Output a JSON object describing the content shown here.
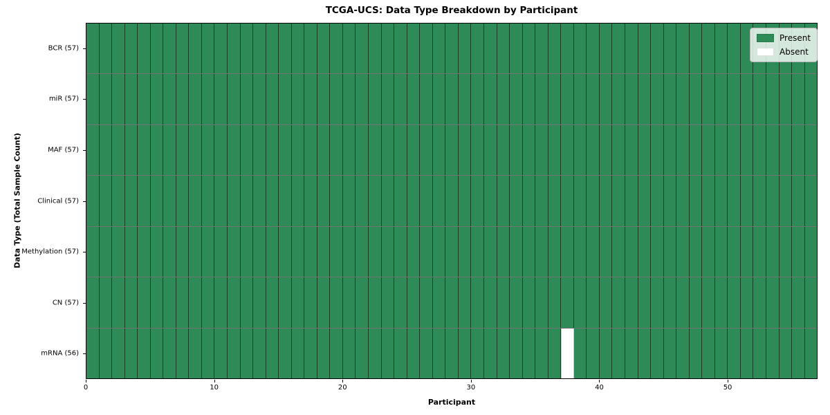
{
  "chart_data": {
    "type": "heatmap",
    "title": "TCGA-UCS: Data Type Breakdown by Participant",
    "xlabel": "Participant",
    "ylabel": "Data Type (Total Sample Count)",
    "n_participants": 57,
    "xlim": [
      0,
      57
    ],
    "x_ticks": [
      0,
      10,
      20,
      30,
      40,
      50
    ],
    "rows": [
      {
        "label": "BCR (57)",
        "present_count": 57,
        "absent_indices": []
      },
      {
        "label": "miR (57)",
        "present_count": 57,
        "absent_indices": []
      },
      {
        "label": "MAF (57)",
        "present_count": 57,
        "absent_indices": []
      },
      {
        "label": "Clinical (57)",
        "present_count": 57,
        "absent_indices": []
      },
      {
        "label": "Methylation (57)",
        "present_count": 57,
        "absent_indices": []
      },
      {
        "label": "CN (57)",
        "present_count": 57,
        "absent_indices": []
      },
      {
        "label": "mRNA (56)",
        "present_count": 56,
        "absent_indices": [
          37
        ]
      }
    ],
    "legend": {
      "position": "upper right",
      "items": [
        {
          "label": "Present",
          "color": "#2e8b57"
        },
        {
          "label": "Absent",
          "color": "#ffffff"
        }
      ]
    },
    "colors": {
      "present": "#2e8b57",
      "absent": "#ffffff",
      "cell_edge": "rgba(0,0,0,0.55)",
      "frame": "#000000"
    }
  }
}
